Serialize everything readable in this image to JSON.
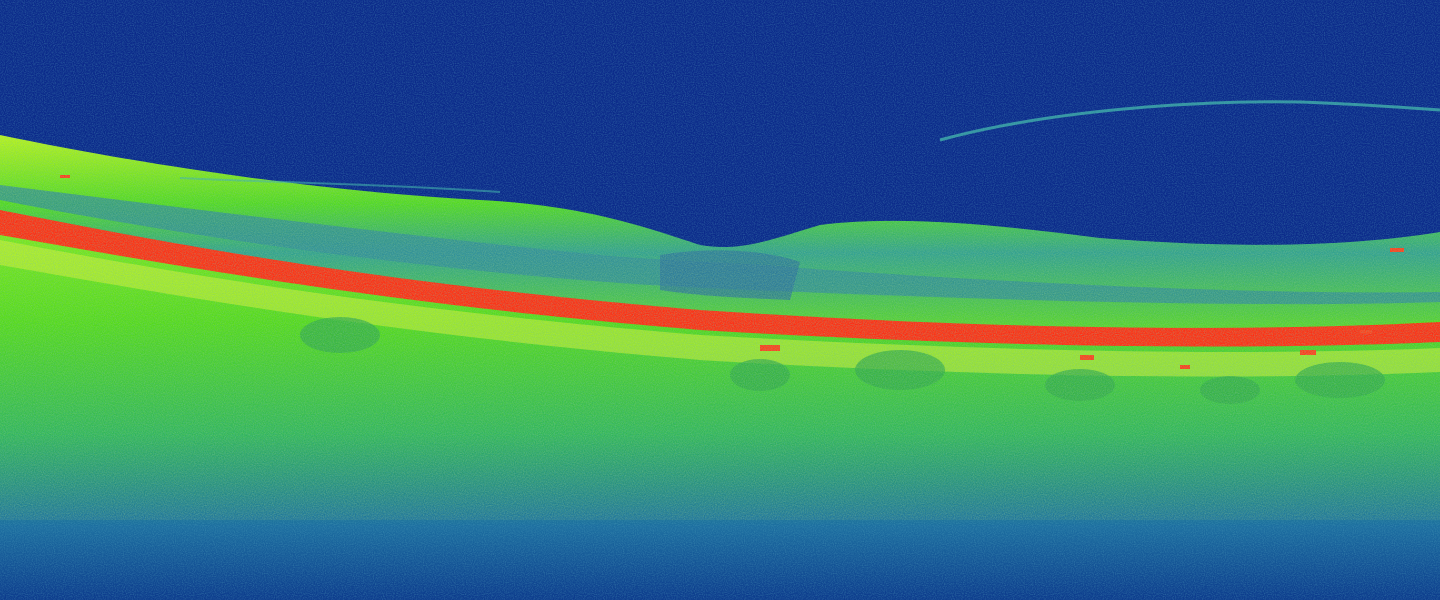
{
  "image": {
    "kind": "oct-retinal-cross-section",
    "palette": {
      "background": "#0b2a8a",
      "deep_blue": "#0a2f86",
      "blue_noise": "#1b5aa8",
      "teal": "#2f9aa0",
      "green": "#45d81a",
      "lime": "#a8f01a",
      "yellow": "#e6f23a",
      "red": "#ff2a1a"
    }
  }
}
